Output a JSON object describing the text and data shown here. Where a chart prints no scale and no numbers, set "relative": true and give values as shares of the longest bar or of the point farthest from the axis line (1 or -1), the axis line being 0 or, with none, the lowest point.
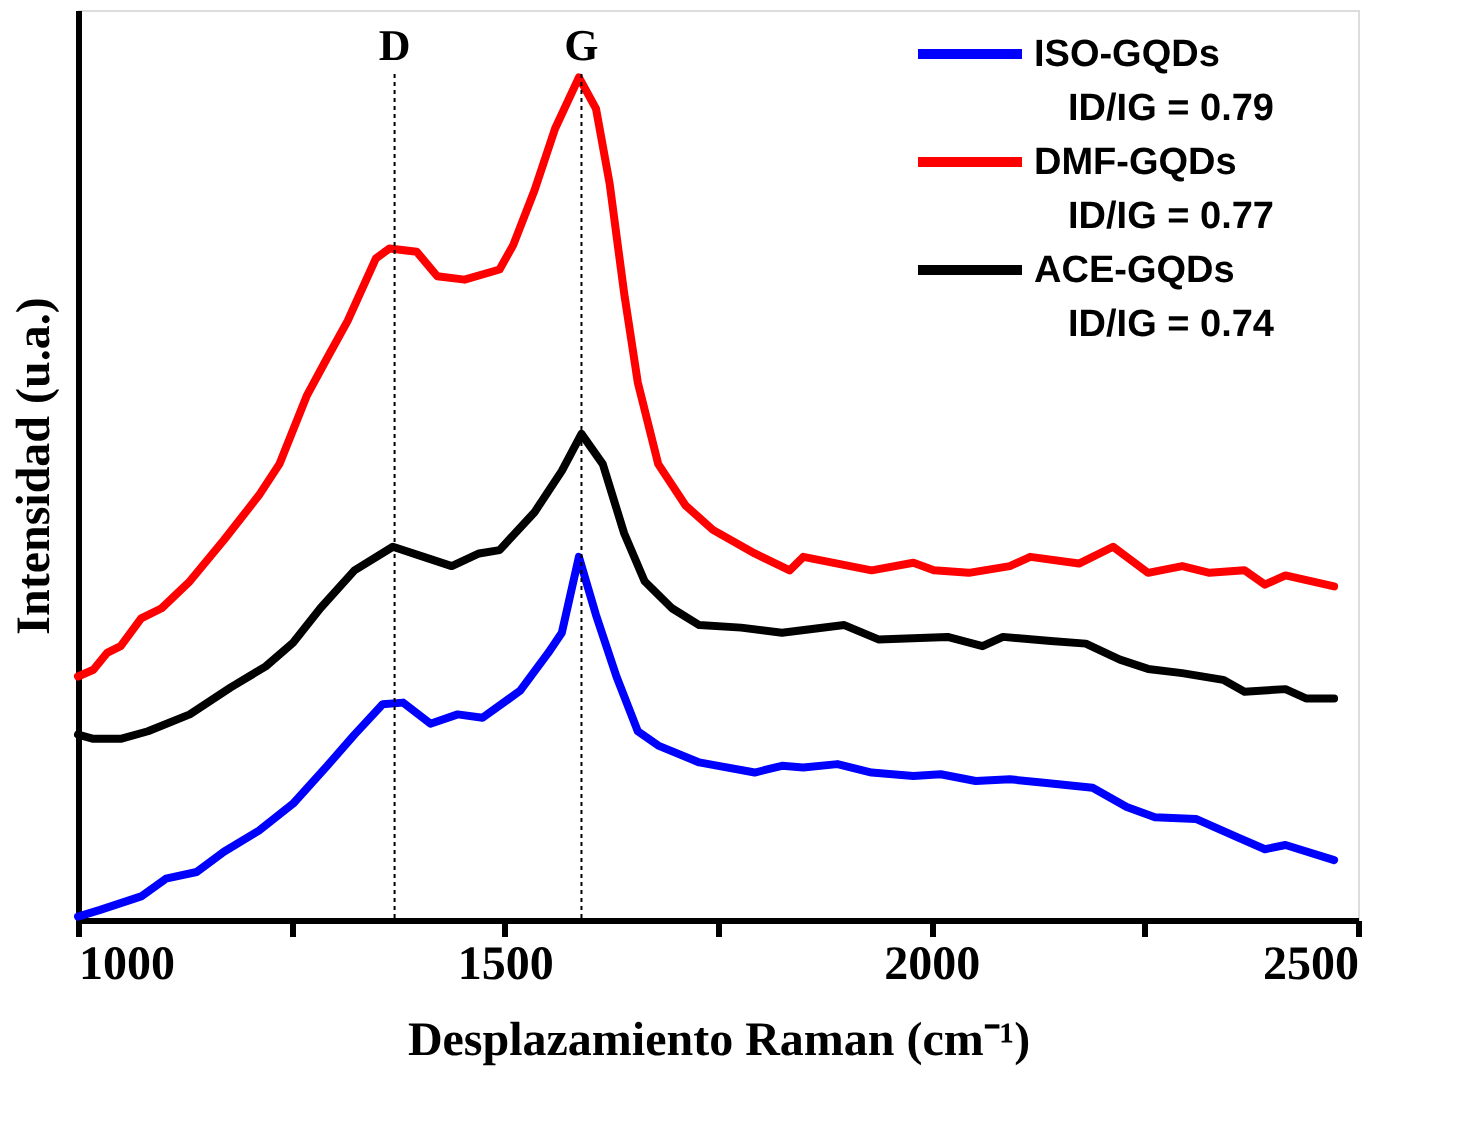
{
  "chart_data": {
    "type": "line",
    "relative": true,
    "xlabel": "Desplazamiento Raman (cm⁻¹)",
    "ylabel": "Intensidad (u.a.)",
    "xlim": [
      1000,
      2500
    ],
    "xticks": [
      1000,
      {
        "value": 1250,
        "label": null
      },
      1500,
      {
        "value": 1750,
        "label": null
      },
      2000,
      {
        "value": 2250,
        "label": null
      },
      2500
    ],
    "grid": false,
    "legend": "top right",
    "line_style": "solid",
    "marker": "none",
    "annotations": [
      "ID/IG = 0.79",
      "ID/IG = 0.77",
      "ID/IG = 0.74"
    ],
    "ref_lines": [
      {
        "axis": "x",
        "value": 1371,
        "label": "D",
        "line_style": "dotted",
        "color": "#000000"
      },
      {
        "axis": "x",
        "value": 1590,
        "label": "G",
        "line_style": "dotted",
        "color": "#000000"
      }
    ],
    "series": [
      {
        "name": "ISO-GQDs",
        "color": "#0000ff",
        "x": [
          1000,
          1026,
          1074,
          1103,
          1139,
          1171,
          1212,
          1252,
          1292,
          1324,
          1357,
          1381,
          1413,
          1445,
          1474,
          1518,
          1551,
          1567,
          1587,
          1607,
          1631,
          1656,
          1680,
          1728,
          1793,
          1825,
          1850,
          1890,
          1930,
          1979,
          2011,
          2052,
          2092,
          2132,
          2189,
          2229,
          2262,
          2310,
          2359,
          2391,
          2415,
          2472
        ],
        "values": [
          0.004,
          0.012,
          0.028,
          0.049,
          0.057,
          0.081,
          0.106,
          0.138,
          0.183,
          0.22,
          0.256,
          0.258,
          0.233,
          0.244,
          0.24,
          0.272,
          0.317,
          0.341,
          0.431,
          0.362,
          0.289,
          0.224,
          0.207,
          0.187,
          0.175,
          0.183,
          0.181,
          0.185,
          0.175,
          0.171,
          0.173,
          0.165,
          0.167,
          0.163,
          0.157,
          0.134,
          0.122,
          0.12,
          0.098,
          0.084,
          0.089,
          0.071
        ]
      },
      {
        "name": "DMF-GQDs",
        "color": "#ff0000",
        "x": [
          1000,
          1018,
          1034,
          1050,
          1074,
          1098,
          1131,
          1171,
          1212,
          1236,
          1268,
          1292,
          1316,
          1349,
          1365,
          1397,
          1421,
          1453,
          1494,
          1510,
          1535,
          1559,
          1587,
          1607,
          1623,
          1640,
          1656,
          1680,
          1712,
          1744,
          1793,
          1834,
          1850,
          1890,
          1930,
          1979,
          2003,
          2044,
          2092,
          2116,
          2173,
          2213,
          2254,
          2294,
          2326,
          2367,
          2391,
          2415,
          2472
        ],
        "values": [
          0.289,
          0.297,
          0.317,
          0.325,
          0.358,
          0.37,
          0.402,
          0.451,
          0.504,
          0.541,
          0.622,
          0.667,
          0.711,
          0.785,
          0.797,
          0.793,
          0.764,
          0.76,
          0.772,
          0.801,
          0.866,
          0.939,
          1.0,
          0.963,
          0.874,
          0.744,
          0.638,
          0.541,
          0.492,
          0.463,
          0.435,
          0.415,
          0.431,
          0.423,
          0.415,
          0.424,
          0.415,
          0.412,
          0.42,
          0.431,
          0.423,
          0.443,
          0.412,
          0.42,
          0.412,
          0.415,
          0.398,
          0.409,
          0.396
        ]
      },
      {
        "name": "ACE-GQDs",
        "color": "#000000",
        "x": [
          1000,
          1018,
          1050,
          1082,
          1131,
          1179,
          1220,
          1252,
          1284,
          1324,
          1369,
          1405,
          1438,
          1470,
          1494,
          1535,
          1567,
          1590,
          1615,
          1640,
          1664,
          1696,
          1728,
          1777,
          1825,
          1898,
          1938,
          2019,
          2060,
          2084,
          2140,
          2181,
          2221,
          2254,
          2294,
          2342,
          2367,
          2415,
          2439,
          2472
        ],
        "values": [
          0.22,
          0.215,
          0.215,
          0.224,
          0.244,
          0.276,
          0.301,
          0.329,
          0.37,
          0.415,
          0.443,
          0.431,
          0.42,
          0.435,
          0.439,
          0.484,
          0.533,
          0.577,
          0.541,
          0.459,
          0.402,
          0.37,
          0.35,
          0.347,
          0.341,
          0.35,
          0.333,
          0.336,
          0.325,
          0.336,
          0.331,
          0.328,
          0.309,
          0.298,
          0.293,
          0.285,
          0.271,
          0.274,
          0.263,
          0.263
        ]
      }
    ]
  }
}
